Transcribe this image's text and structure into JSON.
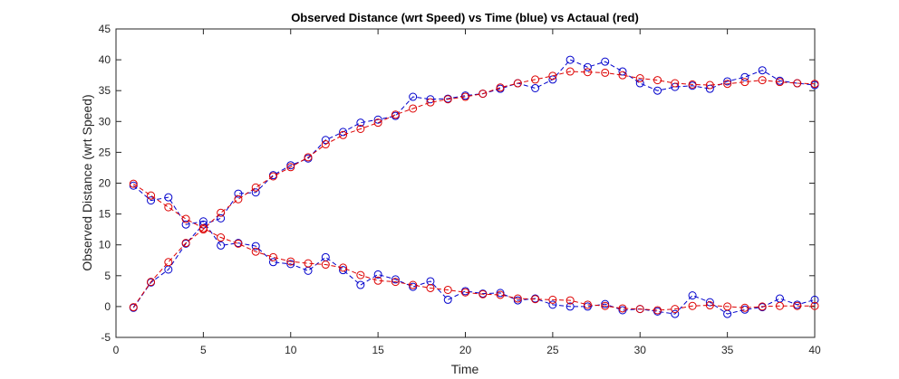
{
  "chart_data": {
    "type": "line",
    "title": "Observed Distance (wrt Speed) vs Time (blue) vs Actaual (red)",
    "xlabel": "Time",
    "ylabel": "Observed Distance (wrt Speed)",
    "xlim": [
      0,
      40
    ],
    "ylim": [
      -5,
      45
    ],
    "xticks": [
      0,
      5,
      10,
      15,
      20,
      25,
      30,
      35,
      40
    ],
    "yticks": [
      -5,
      0,
      5,
      10,
      15,
      20,
      25,
      30,
      35,
      40,
      45
    ],
    "grid": false,
    "legend": "none",
    "x": [
      1,
      2,
      3,
      4,
      5,
      6,
      7,
      8,
      9,
      10,
      11,
      12,
      13,
      14,
      15,
      16,
      17,
      18,
      19,
      20,
      21,
      22,
      23,
      24,
      25,
      26,
      27,
      28,
      29,
      30,
      31,
      32,
      33,
      34,
      35,
      36,
      37,
      38,
      39,
      40
    ],
    "series": [
      {
        "color": "#0000cc",
        "values": [
          -0.2,
          3.9,
          6.0,
          10.2,
          13.3,
          14.3,
          18.3,
          18.5,
          21.3,
          22.9,
          24.0,
          27.0,
          28.3,
          29.8,
          30.3,
          30.9,
          34.0,
          33.6,
          33.7,
          34.2,
          34.5,
          35.3,
          36.2,
          35.4,
          36.8,
          40.0,
          38.8,
          39.7,
          38.1,
          36.2,
          35.0,
          35.6,
          35.8,
          35.3,
          36.5,
          37.2,
          38.3,
          36.6,
          36.2,
          35.9
        ]
      },
      {
        "color": "#dd0000",
        "values": [
          -0.1,
          4.0,
          7.2,
          10.3,
          12.5,
          15.2,
          17.4,
          19.3,
          21.1,
          22.6,
          24.2,
          26.3,
          27.8,
          28.8,
          29.8,
          31.1,
          32.1,
          33.1,
          33.6,
          34.0,
          34.5,
          35.5,
          36.2,
          36.8,
          37.4,
          38.1,
          38.0,
          37.9,
          37.5,
          37.0,
          36.7,
          36.2,
          36.0,
          35.9,
          36.1,
          36.4,
          36.7,
          36.4,
          36.2,
          36.1
        ]
      },
      {
        "color": "#0000cc",
        "values": [
          19.6,
          17.2,
          17.7,
          13.3,
          13.8,
          9.9,
          10.3,
          9.8,
          7.2,
          6.9,
          5.8,
          8.0,
          5.9,
          3.5,
          5.2,
          4.4,
          3.2,
          4.1,
          1.1,
          2.5,
          2.1,
          2.2,
          1.0,
          1.3,
          0.3,
          0.0,
          0.0,
          0.4,
          -0.6,
          -0.4,
          -0.8,
          -1.2,
          1.8,
          0.7,
          -1.2,
          -0.5,
          -0.1,
          1.3,
          0.3,
          1.1
        ]
      },
      {
        "color": "#dd0000",
        "values": [
          19.9,
          18.0,
          16.1,
          14.2,
          12.7,
          11.2,
          10.2,
          8.9,
          8.0,
          7.3,
          7.0,
          6.8,
          6.3,
          5.1,
          4.2,
          4.0,
          3.5,
          3.0,
          2.7,
          2.3,
          2.0,
          1.9,
          1.3,
          1.2,
          1.1,
          1.0,
          0.3,
          0.1,
          -0.3,
          -0.4,
          -0.6,
          -0.4,
          0.1,
          0.2,
          0.0,
          -0.2,
          0.0,
          0.1,
          0.1,
          0.1
        ]
      }
    ]
  }
}
